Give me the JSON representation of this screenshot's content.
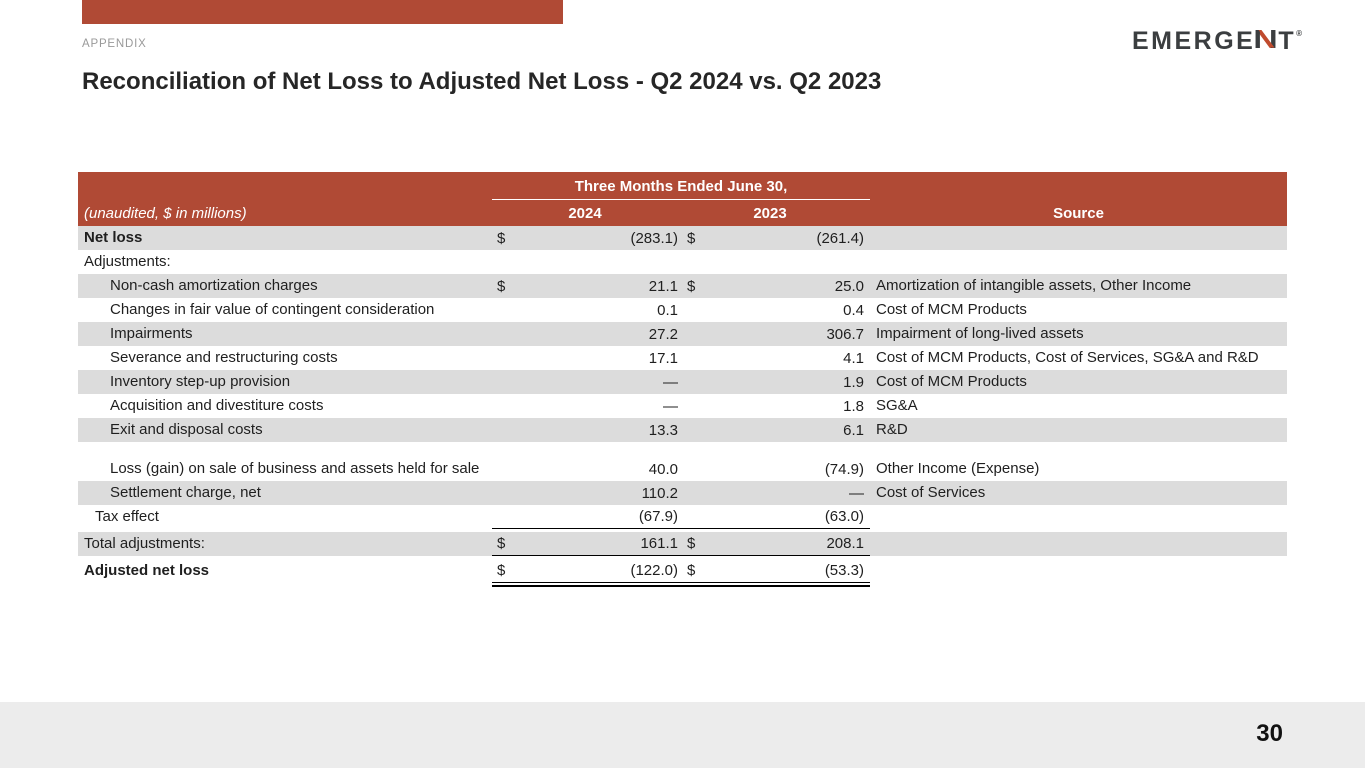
{
  "page": {
    "appendix_label": "APPENDIX",
    "title": "Reconciliation of Net Loss to Adjusted Net Loss - Q2 2024 vs. Q2 2023",
    "page_number": "30"
  },
  "logo": {
    "wordmark": "EMERGENT",
    "text_before_n": "EMERGE",
    "text_after_n": "T",
    "mark": "®"
  },
  "colors": {
    "brand_red": "#B04A35",
    "stripe_gray": "#DCDCDC",
    "footer_gray": "#ECECEC",
    "logo_dark": "#3B3E40",
    "logo_red": "#C04B2E"
  },
  "table": {
    "span_header": "Three Months Ended June 30,",
    "unaudited_note": "(unaudited, $ in millions)",
    "col_2024": "2024",
    "col_2023": "2023",
    "col_source": "Source",
    "rows": [
      {
        "label": "Net loss",
        "bold": true,
        "indent": 0,
        "stripe": true,
        "d1": "$",
        "v1": "(283.1)",
        "d2": "$",
        "v2": "(261.4)",
        "source": ""
      },
      {
        "label": "Adjustments:",
        "indent": 0,
        "stripe": false,
        "d1": "",
        "v1": "",
        "d2": "",
        "v2": "",
        "source": ""
      },
      {
        "label": "Non-cash amortization charges",
        "indent": 2,
        "stripe": true,
        "d1": "$",
        "v1": "21.1",
        "d2": "$",
        "v2": "25.0",
        "source": "Amortization of intangible assets, Other Income"
      },
      {
        "label": "Changes in fair value of contingent consideration",
        "indent": 2,
        "stripe": false,
        "d1": "",
        "v1": "0.1",
        "d2": "",
        "v2": "0.4",
        "source": "Cost of MCM Products"
      },
      {
        "label": "Impairments",
        "indent": 2,
        "stripe": true,
        "d1": "",
        "v1": "27.2",
        "d2": "",
        "v2": "306.7",
        "source": "Impairment of long-lived assets"
      },
      {
        "label": "Severance and restructuring costs",
        "indent": 2,
        "stripe": false,
        "d1": "",
        "v1": "17.1",
        "d2": "",
        "v2": "4.1",
        "source": "Cost of MCM Products, Cost of Services, SG&A and R&D"
      },
      {
        "label": "Inventory step-up provision",
        "indent": 2,
        "stripe": true,
        "d1": "",
        "v1": "—",
        "d2": "",
        "v2": "1.9",
        "source": "Cost of MCM Products"
      },
      {
        "label": "Acquisition and divestiture costs",
        "indent": 2,
        "stripe": false,
        "d1": "",
        "v1": "—",
        "d2": "",
        "v2": "1.8",
        "source": "SG&A"
      },
      {
        "label": "Exit and disposal costs",
        "indent": 2,
        "stripe": true,
        "d1": "",
        "v1": "13.3",
        "d2": "",
        "v2": "6.1",
        "source": "R&D"
      },
      {
        "label": "Loss (gain) on sale of business and assets held for sale",
        "indent": 2,
        "stripe": false,
        "tall": true,
        "d1": "",
        "v1": "40.0",
        "d2": "",
        "v2": "(74.9)",
        "source": "Other Income (Expense)"
      },
      {
        "label": "Settlement charge, net",
        "indent": 2,
        "stripe": true,
        "d1": "",
        "v1": "110.2",
        "d2": "",
        "v2": "—",
        "source": "Cost of Services"
      },
      {
        "label": "Tax effect",
        "indent": 1,
        "stripe": false,
        "rule_below": true,
        "d1": "",
        "v1": "(67.9)",
        "d2": "",
        "v2": "(63.0)",
        "source": ""
      },
      {
        "label": "Total adjustments:",
        "indent": 0,
        "stripe": true,
        "gap_above": true,
        "rule_below": true,
        "d1": "$",
        "v1": "161.1",
        "d2": "$",
        "v2": "208.1",
        "source": ""
      },
      {
        "label": "Adjusted net loss",
        "bold": true,
        "indent": 0,
        "stripe": false,
        "gap_above": true,
        "rule_below": true,
        "double_rule_below": true,
        "d1": "$",
        "v1": "(122.0)",
        "d2": "$",
        "v2": "(53.3)",
        "source": ""
      }
    ]
  }
}
